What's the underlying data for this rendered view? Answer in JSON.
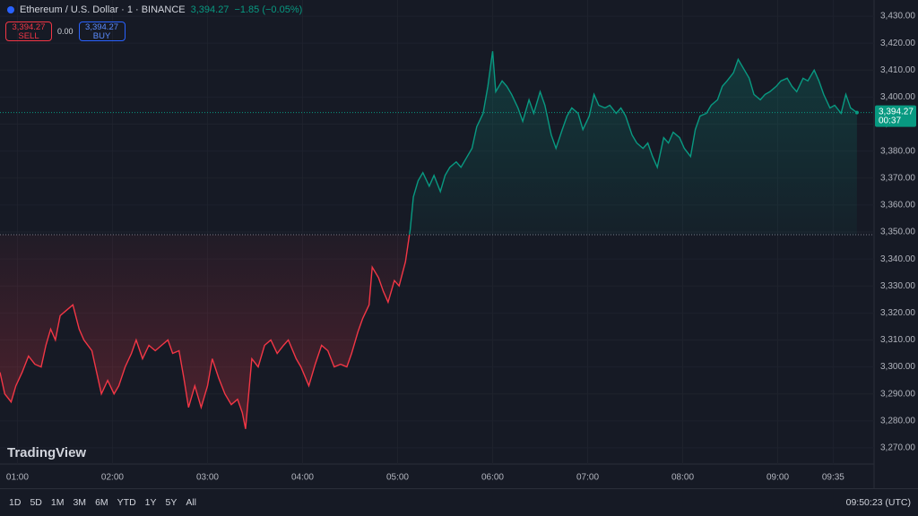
{
  "header": {
    "symbol": "Ethereum / U.S. Dollar · 1 · BINANCE",
    "price": "3,394.27",
    "change": "−1.85 (−0.05%)",
    "sell_price": "3,394.27",
    "sell": "SELL",
    "spread": "0.00",
    "buy_price": "3,394.27",
    "buy": "BUY"
  },
  "logo": "TradingView",
  "toolbar": {
    "ranges": [
      "1D",
      "5D",
      "1M",
      "3M",
      "6M",
      "YTD",
      "1Y",
      "5Y",
      "All"
    ],
    "clock": "09:50:23 (UTC)"
  },
  "chart_data": {
    "type": "line",
    "up_color": "#089981",
    "down_color": "#f23645",
    "baseline": 3349,
    "grid": true,
    "x": [
      49,
      52,
      56,
      59,
      63,
      67,
      71,
      75,
      78,
      81,
      84,
      87,
      91,
      95,
      99,
      102,
      107,
      110,
      113,
      117,
      121,
      124,
      128,
      132,
      135,
      139,
      143,
      147,
      151,
      155,
      158,
      162,
      165,
      168,
      172,
      176,
      180,
      183,
      187,
      191,
      195,
      199,
      202,
      204,
      208,
      212,
      216,
      220,
      224,
      228,
      231,
      236,
      239,
      244,
      248,
      252,
      256,
      260,
      264,
      268,
      271,
      275,
      278,
      282,
      284,
      288,
      291,
      294,
      298,
      301,
      305,
      308,
      310,
      313,
      316,
      320,
      323,
      327,
      330,
      333,
      337,
      340,
      344,
      347,
      350,
      354,
      357,
      360,
      362,
      366,
      369,
      372,
      376,
      379,
      383,
      386,
      390,
      393,
      397,
      400,
      404,
      407,
      410,
      414,
      417,
      421,
      424,
      427,
      431,
      434,
      438,
      441,
      444,
      448,
      451,
      455,
      458,
      461,
      464,
      468,
      471,
      474,
      478,
      481,
      485,
      488,
      491,
      495,
      498,
      502,
      505,
      508,
      512,
      515,
      518,
      522,
      525,
      529,
      532,
      535,
      539,
      542,
      546,
      549,
      552,
      556,
      559,
      563,
      566,
      569,
      573,
      576,
      580,
      583,
      586,
      590
    ],
    "values": [
      3298,
      3290,
      3287,
      3293,
      3298,
      3304,
      3301,
      3300,
      3308,
      3314,
      3310,
      3319,
      3321,
      3323,
      3314,
      3310,
      3306,
      3298,
      3290,
      3295,
      3290,
      3293,
      3300,
      3305,
      3310,
      3303,
      3308,
      3306,
      3308,
      3310,
      3305,
      3306,
      3296,
      3285,
      3293,
      3285,
      3293,
      3303,
      3296,
      3290,
      3286,
      3288,
      3283,
      3277,
      3303,
      3300,
      3308,
      3310,
      3305,
      3308,
      3310,
      3303,
      3300,
      3293,
      3301,
      3308,
      3306,
      3300,
      3301,
      3300,
      3305,
      3313,
      3318,
      3323,
      3337,
      3333,
      3328,
      3324,
      3332,
      3330,
      3339,
      3351,
      3363,
      3369,
      3372,
      3367,
      3371,
      3365,
      3371,
      3374,
      3376,
      3374,
      3378,
      3381,
      3389,
      3394,
      3404,
      3417,
      3402,
      3406,
      3404,
      3401,
      3396,
      3391,
      3399,
      3394,
      3402,
      3397,
      3386,
      3381,
      3388,
      3393,
      3396,
      3394,
      3388,
      3393,
      3401,
      3397,
      3396,
      3397,
      3394,
      3396,
      3393,
      3386,
      3383,
      3381,
      3383,
      3378,
      3374,
      3385,
      3383,
      3387,
      3385,
      3381,
      3378,
      3388,
      3393,
      3394,
      3397,
      3399,
      3404,
      3406,
      3409,
      3414,
      3411,
      3407,
      3401,
      3399,
      3401,
      3402,
      3404,
      3406,
      3407,
      3404,
      3402,
      3407,
      3406,
      3410,
      3406,
      3401,
      3396,
      3397,
      3394,
      3401,
      3396,
      3394.27
    ],
    "last_value": {
      "value": 3394.27,
      "label": "3,394.27"
    },
    "countdown": "00:37",
    "xlim": [
      49,
      598
    ],
    "ylim": [
      3264,
      3436
    ],
    "xticks": [
      {
        "value": 60,
        "label": "01:00"
      },
      {
        "value": 120,
        "label": "02:00"
      },
      {
        "value": 180,
        "label": "03:00"
      },
      {
        "value": 240,
        "label": "04:00"
      },
      {
        "value": 300,
        "label": "05:00"
      },
      {
        "value": 360,
        "label": "06:00"
      },
      {
        "value": 420,
        "label": "07:00"
      },
      {
        "value": 480,
        "label": "08:00"
      },
      {
        "value": 540,
        "label": "09:00"
      },
      {
        "value": 575,
        "label": "09:35"
      }
    ],
    "yticks": [
      {
        "value": 3270,
        "label": "3,270.00"
      },
      {
        "value": 3280,
        "label": "3,280.00"
      },
      {
        "value": 3290,
        "label": "3,290.00"
      },
      {
        "value": 3300,
        "label": "3,300.00"
      },
      {
        "value": 3310,
        "label": "3,310.00"
      },
      {
        "value": 3320,
        "label": "3,320.00"
      },
      {
        "value": 3330,
        "label": "3,330.00"
      },
      {
        "value": 3340,
        "label": "3,340.00"
      },
      {
        "value": 3350,
        "label": "3,350.00"
      },
      {
        "value": 3360,
        "label": "3,360.00"
      },
      {
        "value": 3370,
        "label": "3,370.00"
      },
      {
        "value": 3380,
        "label": "3,380.00"
      },
      {
        "value": 3390,
        "label": "3,390.00"
      },
      {
        "value": 3400,
        "label": "3,400.00"
      },
      {
        "value": 3410,
        "label": "3,410.00"
      },
      {
        "value": 3420,
        "label": "3,420.00"
      },
      {
        "value": 3430,
        "label": "3,430.00"
      }
    ]
  }
}
